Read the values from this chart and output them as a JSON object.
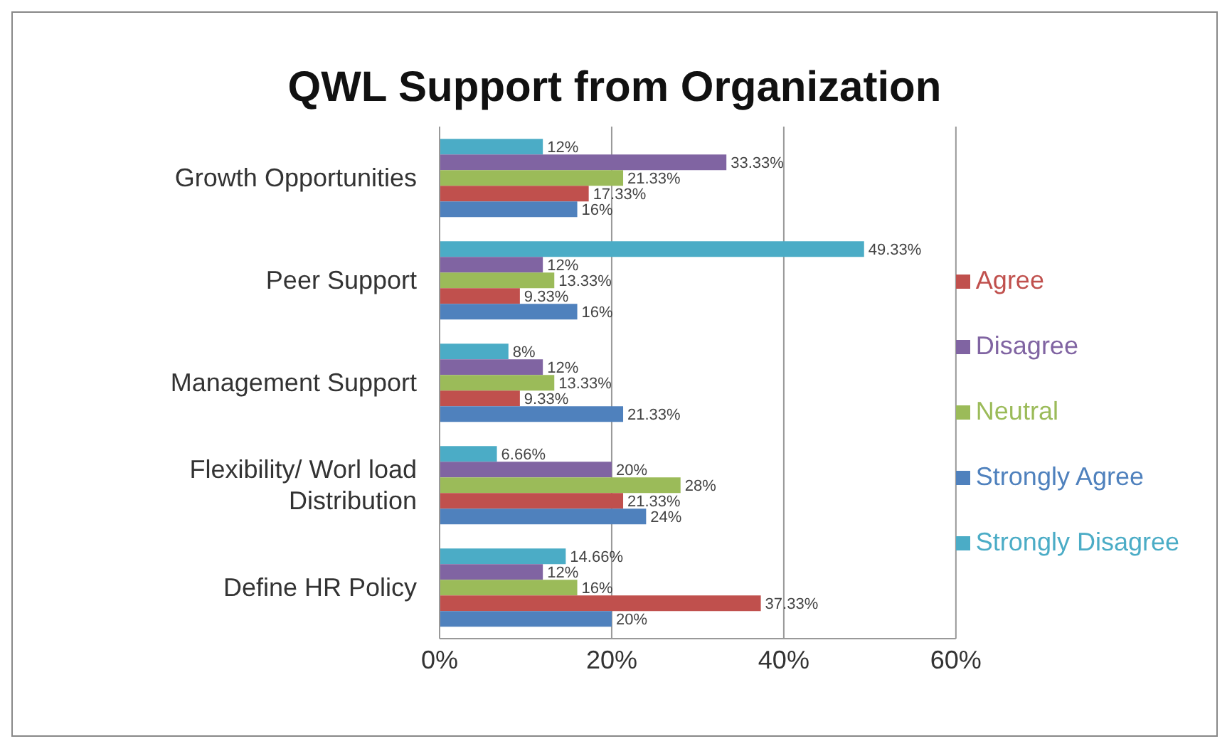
{
  "chart_data": {
    "type": "bar",
    "orientation": "horizontal",
    "title": "QWL Support from Organization",
    "categories": [
      "Growth Opportunities",
      "Peer Support",
      "Management Support",
      "Flexibility/ Worl load Distribution",
      "Define HR Policy"
    ],
    "series": [
      {
        "name": "Strongly Disagree",
        "color": "#4bacc6",
        "values": [
          12,
          49.33,
          8,
          6.66,
          14.66
        ],
        "value_labels": [
          "12%",
          "49.33%",
          "8%",
          "6.66%",
          "14.66%"
        ]
      },
      {
        "name": "Disagree",
        "color": "#8064a2",
        "values": [
          33.33,
          12,
          12,
          20,
          12
        ],
        "value_labels": [
          "33.33%",
          "12%",
          "12%",
          "20%",
          "12%"
        ]
      },
      {
        "name": "Neutral",
        "color": "#9bbb59",
        "values": [
          21.33,
          13.33,
          13.33,
          28,
          16
        ],
        "value_labels": [
          "21.33%",
          "13.33%",
          "13.33%",
          "28%",
          "16%"
        ]
      },
      {
        "name": "Agree",
        "color": "#c0504d",
        "values": [
          17.33,
          9.33,
          9.33,
          21.33,
          37.33
        ],
        "value_labels": [
          "17.33%",
          "9.33%",
          "9.33%",
          "21.33%",
          "37.33%"
        ]
      },
      {
        "name": "Strongly Agree",
        "color": "#4f81bd",
        "values": [
          16,
          16,
          21.33,
          24,
          20
        ],
        "value_labels": [
          "16%",
          "16%",
          "21.33%",
          "24%",
          "20%"
        ]
      }
    ],
    "xlim": [
      0,
      60
    ],
    "xticks": [
      {
        "value": 0,
        "label": "0%"
      },
      {
        "value": 20,
        "label": "20%"
      },
      {
        "value": 40,
        "label": "40%"
      },
      {
        "value": 60,
        "label": "60%"
      }
    ],
    "grid": "x",
    "legend": "right"
  }
}
